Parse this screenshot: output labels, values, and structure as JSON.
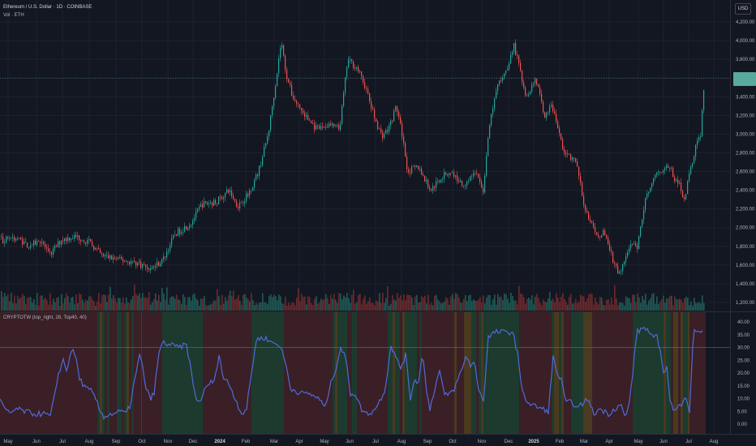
{
  "header": {
    "price_title": "Ethereum / U.S. Dollar · 1D · COINBASE",
    "volume_title": "Vol · ETH",
    "indicator_title": "CRYPTOTW (top_right, 28, Top40, 40)",
    "currency": "USD"
  },
  "colors": {
    "background": "#131722",
    "grid": "#1e222d",
    "up": "#26a69a",
    "down": "#ef5350",
    "indicator_line": "#4f6bd8",
    "zone_red": "#3a1f26",
    "zone_green": "#1d3a2e",
    "current_price_box": "#5aa99f"
  },
  "chart_data": [
    {
      "type": "candlestick",
      "title": "Ethereum / U.S. Dollar · 1D · COINBASE",
      "y_axis_side": "right",
      "ylim": [
        1100,
        4300
      ],
      "y_ticks": [
        "4,200.00",
        "4,000.00",
        "3,800.00",
        "3,600.00",
        "3,400.00",
        "3,200.00",
        "3,000.00",
        "2,800.00",
        "2,600.00",
        "2,400.00",
        "2,200.00",
        "2,000.00",
        "1,800.00",
        "1,600.00",
        "1,400.00",
        "1,200.00"
      ],
      "y_tick_values": [
        4200,
        4000,
        3800,
        3600,
        3400,
        3200,
        3000,
        2800,
        2600,
        2400,
        2200,
        2000,
        1800,
        1600,
        1400,
        1200
      ],
      "x_tick_labels": [
        "May",
        "Jun",
        "Jul",
        "Aug",
        "Sep",
        "Oct",
        "Nov",
        "Dec",
        "2024",
        "Feb",
        "Mar",
        "Apr",
        "May",
        "Jun",
        "Jul",
        "Aug",
        "Sep",
        "Oct",
        "Nov",
        "Dec",
        "2025",
        "Feb",
        "Mar",
        "Apr",
        "May",
        "Jun",
        "Jul",
        "Aug"
      ],
      "close_keypoints": [
        [
          0,
          1900
        ],
        [
          3,
          1860
        ],
        [
          10,
          1900
        ],
        [
          22,
          1880
        ],
        [
          35,
          1800
        ],
        [
          50,
          1870
        ],
        [
          60,
          1700
        ],
        [
          75,
          1870
        ],
        [
          88,
          1900
        ],
        [
          95,
          1900
        ],
        [
          110,
          1840
        ],
        [
          125,
          1700
        ],
        [
          150,
          1650
        ],
        [
          170,
          1620
        ],
        [
          185,
          1560
        ],
        [
          200,
          1650
        ],
        [
          215,
          1930
        ],
        [
          235,
          2050
        ],
        [
          248,
          2250
        ],
        [
          265,
          2270
        ],
        [
          282,
          2400
        ],
        [
          292,
          2230
        ],
        [
          305,
          2350
        ],
        [
          318,
          2600
        ],
        [
          330,
          3000
        ],
        [
          340,
          3600
        ],
        [
          346,
          4000
        ],
        [
          352,
          3650
        ],
        [
          360,
          3400
        ],
        [
          375,
          3200
        ],
        [
          390,
          3050
        ],
        [
          405,
          3100
        ],
        [
          418,
          3050
        ],
        [
          428,
          3800
        ],
        [
          440,
          3700
        ],
        [
          450,
          3500
        ],
        [
          460,
          3200
        ],
        [
          470,
          2980
        ],
        [
          478,
          3050
        ],
        [
          488,
          3300
        ],
        [
          495,
          3000
        ],
        [
          502,
          2600
        ],
        [
          515,
          2650
        ],
        [
          530,
          2400
        ],
        [
          545,
          2550
        ],
        [
          555,
          2600
        ],
        [
          570,
          2450
        ],
        [
          585,
          2600
        ],
        [
          595,
          2400
        ],
        [
          603,
          3100
        ],
        [
          612,
          3500
        ],
        [
          624,
          3700
        ],
        [
          633,
          3950
        ],
        [
          640,
          3700
        ],
        [
          648,
          3400
        ],
        [
          660,
          3600
        ],
        [
          670,
          3200
        ],
        [
          680,
          3300
        ],
        [
          695,
          2800
        ],
        [
          710,
          2700
        ],
        [
          718,
          2300
        ],
        [
          725,
          2100
        ],
        [
          735,
          1900
        ],
        [
          745,
          1950
        ],
        [
          755,
          1650
        ],
        [
          762,
          1500
        ],
        [
          768,
          1600
        ],
        [
          775,
          1800
        ],
        [
          785,
          1800
        ],
        [
          795,
          2300
        ],
        [
          805,
          2550
        ],
        [
          815,
          2620
        ],
        [
          825,
          2650
        ],
        [
          832,
          2500
        ],
        [
          838,
          2450
        ],
        [
          843,
          2300
        ],
        [
          850,
          2600
        ],
        [
          858,
          2900
        ],
        [
          863,
          3000
        ],
        [
          868,
          3600
        ]
      ],
      "last_price": 3600,
      "volume_series": "Vol · ETH"
    },
    {
      "type": "line",
      "title": "CRYPTOTW (top_right, 28, Top40, 40)",
      "y_axis_side": "right",
      "ylim": [
        -2.5,
        42
      ],
      "y_ticks": [
        "40.00",
        "35.00",
        "30.00",
        "25.00",
        "20.00",
        "15.00",
        "10.00",
        "5.00",
        "0.00"
      ],
      "y_tick_values": [
        40,
        35,
        30,
        25,
        20,
        15,
        10,
        5,
        0
      ],
      "reference_line": 30,
      "keypoints": [
        [
          0,
          10
        ],
        [
          5,
          6
        ],
        [
          12,
          4
        ],
        [
          20,
          6
        ],
        [
          30,
          5
        ],
        [
          42,
          4
        ],
        [
          55,
          4
        ],
        [
          62,
          3
        ],
        [
          68,
          12
        ],
        [
          72,
          20
        ],
        [
          78,
          25
        ],
        [
          82,
          21
        ],
        [
          88,
          29
        ],
        [
          93,
          27
        ],
        [
          98,
          18
        ],
        [
          105,
          14
        ],
        [
          112,
          13
        ],
        [
          118,
          10
        ],
        [
          122,
          6
        ],
        [
          128,
          3
        ],
        [
          138,
          4
        ],
        [
          148,
          5
        ],
        [
          155,
          4
        ],
        [
          160,
          7
        ],
        [
          164,
          14
        ],
        [
          168,
          20
        ],
        [
          172,
          27
        ],
        [
          176,
          22
        ],
        [
          180,
          14
        ],
        [
          185,
          10
        ],
        [
          190,
          12
        ],
        [
          195,
          26
        ],
        [
          200,
          32
        ],
        [
          210,
          31
        ],
        [
          220,
          30
        ],
        [
          230,
          31
        ],
        [
          235,
          22
        ],
        [
          240,
          12
        ],
        [
          245,
          8
        ],
        [
          252,
          13
        ],
        [
          258,
          16
        ],
        [
          265,
          17
        ],
        [
          270,
          28
        ],
        [
          275,
          18
        ],
        [
          282,
          16
        ],
        [
          290,
          10
        ],
        [
          298,
          4
        ],
        [
          304,
          6
        ],
        [
          310,
          20
        ],
        [
          316,
          33
        ],
        [
          325,
          34
        ],
        [
          335,
          32
        ],
        [
          345,
          31
        ],
        [
          352,
          24
        ],
        [
          358,
          14
        ],
        [
          365,
          13
        ],
        [
          372,
          12
        ],
        [
          380,
          12
        ],
        [
          388,
          11
        ],
        [
          396,
          9
        ],
        [
          400,
          6
        ],
        [
          408,
          16
        ],
        [
          414,
          22
        ],
        [
          420,
          30
        ],
        [
          426,
          26
        ],
        [
          432,
          12
        ],
        [
          438,
          12
        ],
        [
          445,
          6
        ],
        [
          452,
          4
        ],
        [
          460,
          5
        ],
        [
          468,
          9
        ],
        [
          475,
          14
        ],
        [
          482,
          31
        ],
        [
          488,
          26
        ],
        [
          494,
          22
        ],
        [
          500,
          27
        ],
        [
          506,
          10
        ],
        [
          511,
          18
        ],
        [
          516,
          16
        ],
        [
          521,
          29
        ],
        [
          526,
          12
        ],
        [
          530,
          6
        ],
        [
          536,
          14
        ],
        [
          542,
          21
        ],
        [
          548,
          11
        ],
        [
          554,
          12
        ],
        [
          559,
          13
        ],
        [
          564,
          17
        ],
        [
          570,
          22
        ],
        [
          575,
          27
        ],
        [
          580,
          23
        ],
        [
          585,
          24
        ],
        [
          590,
          14
        ],
        [
          596,
          9
        ],
        [
          602,
          34
        ],
        [
          610,
          36
        ],
        [
          622,
          36
        ],
        [
          632,
          36
        ],
        [
          638,
          28
        ],
        [
          642,
          16
        ],
        [
          648,
          10
        ],
        [
          652,
          8
        ],
        [
          660,
          7
        ],
        [
          668,
          6
        ],
        [
          676,
          5
        ],
        [
          682,
          26
        ],
        [
          688,
          19
        ],
        [
          692,
          17
        ],
        [
          698,
          8
        ],
        [
          705,
          9
        ],
        [
          712,
          6
        ],
        [
          718,
          8
        ],
        [
          724,
          10
        ],
        [
          732,
          4
        ],
        [
          740,
          6
        ],
        [
          750,
          4
        ],
        [
          758,
          6
        ],
        [
          765,
          8
        ],
        [
          770,
          3
        ],
        [
          775,
          6
        ],
        [
          780,
          20
        ],
        [
          785,
          36
        ],
        [
          790,
          37
        ],
        [
          795,
          38
        ],
        [
          800,
          36
        ],
        [
          806,
          33
        ],
        [
          810,
          35
        ],
        [
          814,
          28
        ],
        [
          818,
          21
        ],
        [
          822,
          22
        ],
        [
          826,
          10
        ],
        [
          830,
          5
        ],
        [
          835,
          6
        ],
        [
          840,
          8
        ],
        [
          845,
          12
        ],
        [
          850,
          5
        ],
        [
          855,
          36
        ],
        [
          860,
          37
        ],
        [
          865,
          36
        ]
      ],
      "zones": [
        [
          0,
          120,
          "red"
        ],
        [
          120,
          175,
          "mixed"
        ],
        [
          175,
          200,
          "red"
        ],
        [
          200,
          250,
          "green"
        ],
        [
          250,
          310,
          "red"
        ],
        [
          310,
          350,
          "green"
        ],
        [
          350,
          410,
          "red"
        ],
        [
          410,
          440,
          "mixed"
        ],
        [
          440,
          475,
          "red"
        ],
        [
          475,
          520,
          "mixed"
        ],
        [
          520,
          560,
          "red"
        ],
        [
          560,
          600,
          "mixed"
        ],
        [
          600,
          640,
          "green"
        ],
        [
          640,
          680,
          "red"
        ],
        [
          680,
          730,
          "mixed"
        ],
        [
          730,
          780,
          "red"
        ],
        [
          780,
          815,
          "green"
        ],
        [
          815,
          850,
          "mixed"
        ],
        [
          850,
          870,
          "red"
        ]
      ]
    }
  ]
}
